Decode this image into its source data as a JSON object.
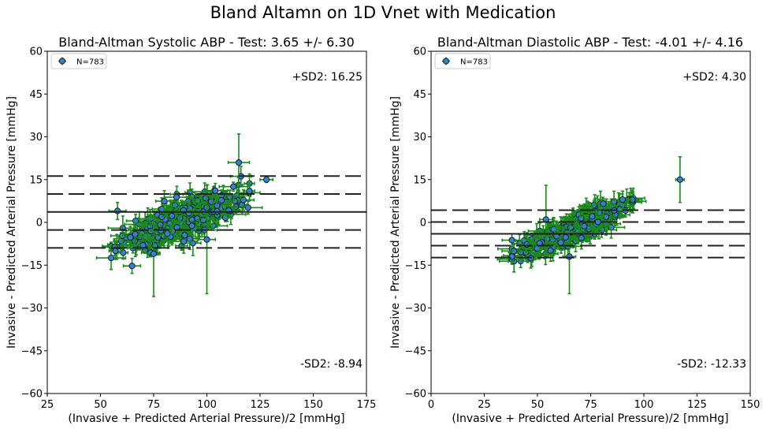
{
  "figure": {
    "suptitle": "Bland Altamn on 1D Vnet with Medication"
  },
  "colors": {
    "marker_fill": "#3a7fc4",
    "marker_edge": "#0b1f3a",
    "errorbar": "#1a8a1a",
    "lines": "#222222"
  },
  "chart_data": [
    {
      "type": "scatter",
      "title": "Bland-Altman Systolic ABP - Test: 3.65 +/- 6.30",
      "xlabel": "(Invasive + Predicted Arterial Pressure)/2 [mmHg]",
      "ylabel": "Invasive - Predicted Arterial Pressure [mmHg]",
      "xlim": [
        25,
        175
      ],
      "ylim": [
        -60,
        60
      ],
      "xticks": [
        25,
        50,
        75,
        100,
        125,
        150,
        175
      ],
      "yticks": [
        -60,
        -45,
        -30,
        -15,
        0,
        15,
        30,
        45,
        60
      ],
      "legend": {
        "label": "N=783",
        "placement": "top-left"
      },
      "annotations": {
        "upper": "+SD2: 16.25",
        "lower": "-SD2: -8.94"
      },
      "mean": 3.65,
      "upper_sd2": 16.25,
      "lower_sd2": -8.94,
      "inner_upper": 9.95,
      "inner_lower": -2.65,
      "cloud": {
        "x_min": 55,
        "x_max": 120,
        "slope": 0.3,
        "intercept": -25.5,
        "spread": 3.2,
        "count": 783
      },
      "outliers": [
        {
          "x": 115,
          "y": 21,
          "xerr": 5,
          "yerr": 10
        },
        {
          "x": 128,
          "y": 15,
          "xerr": 3,
          "yerr": 1
        },
        {
          "x": 100,
          "y": -6,
          "xerr": 4,
          "yerr": 19
        },
        {
          "x": 75,
          "y": -11,
          "xerr": 3,
          "yerr": 15
        },
        {
          "x": 57,
          "y": -10,
          "xerr": 3,
          "yerr": 3
        },
        {
          "x": 58,
          "y": 4,
          "xerr": 4,
          "yerr": 3
        }
      ]
    },
    {
      "type": "scatter",
      "title": "Bland-Altman Diastolic ABP - Test: -4.01 +/- 4.16",
      "xlabel": "(Invasive + Predicted Arterial Pressure)/2 [mmHg]",
      "ylabel": "Invasive - Predicted Arterial Pressure [mmHg]",
      "xlim": [
        0,
        150
      ],
      "ylim": [
        -60,
        60
      ],
      "xticks": [
        0,
        25,
        50,
        75,
        100,
        125,
        150
      ],
      "yticks": [
        -60,
        -45,
        -30,
        -15,
        0,
        15,
        30,
        45,
        60
      ],
      "legend": {
        "label": "N=783",
        "placement": "top-left"
      },
      "annotations": {
        "upper": "+SD2: 4.30",
        "lower": "-SD2: -12.33"
      },
      "mean": -4.01,
      "upper_sd2": 4.3,
      "lower_sd2": -12.33,
      "inner_upper": 0.15,
      "inner_lower": -8.17,
      "cloud": {
        "x_min": 38,
        "x_max": 95,
        "slope": 0.33,
        "intercept": -24.5,
        "spread": 2.0,
        "count": 783
      },
      "outliers": [
        {
          "x": 117,
          "y": 15,
          "xerr": 2,
          "yerr": 8
        },
        {
          "x": 54,
          "y": 1,
          "xerr": 3,
          "yerr": 12
        },
        {
          "x": 65,
          "y": -12,
          "xerr": 3,
          "yerr": 13
        },
        {
          "x": 90,
          "y": 8,
          "xerr": 4,
          "yerr": 3
        },
        {
          "x": 38,
          "y": -12,
          "xerr": 2,
          "yerr": 2
        }
      ]
    }
  ]
}
